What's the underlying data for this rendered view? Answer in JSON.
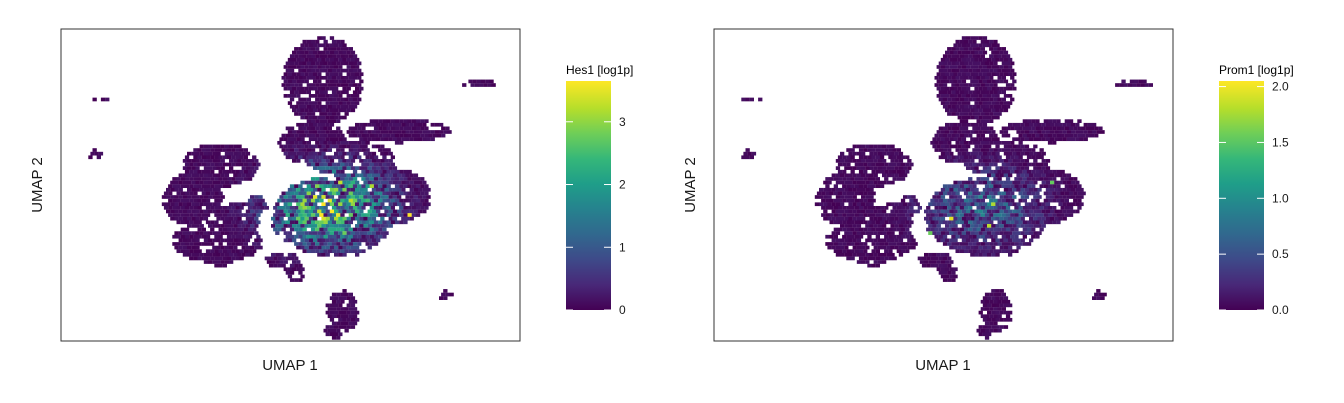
{
  "chart_data": [
    {
      "type": "scatter",
      "subtype": "hexbin-umap-feature-plot",
      "title": "",
      "xlabel": "UMAP 1",
      "ylabel": "UMAP 2",
      "colorbar_title": "Hes1 [log1p]",
      "colorbar_range": [
        0,
        3.65
      ],
      "colorbar_ticks": [
        0,
        1,
        2,
        3
      ],
      "colorbar_tick_labels": [
        "0",
        "1",
        "2",
        "3"
      ],
      "colormap": "viridis",
      "x_ticks_shown": false,
      "y_ticks_shown": false,
      "grid": false,
      "legend_placement": "right",
      "expression_summary": "high expression concentrated in central cluster"
    },
    {
      "type": "scatter",
      "subtype": "hexbin-umap-feature-plot",
      "title": "",
      "xlabel": "UMAP 1",
      "ylabel": "UMAP 2",
      "colorbar_title": "Prom1 [log1p]",
      "colorbar_range": [
        0,
        2.05
      ],
      "colorbar_ticks": [
        0,
        0.5,
        1,
        1.5,
        2
      ],
      "colorbar_tick_labels": [
        "0.0",
        "0.5",
        "1.0",
        "1.5",
        "2.0"
      ],
      "colormap": "viridis",
      "x_ticks_shown": false,
      "y_ticks_shown": false,
      "grid": false,
      "legend_placement": "right",
      "expression_summary": "mostly low, sparse moderate expression in central cluster"
    }
  ],
  "colors": {
    "viridis": [
      "#440154",
      "#482878",
      "#3e4a89",
      "#31688e",
      "#26828e",
      "#1f9e89",
      "#35b779",
      "#6ece58",
      "#b5de2b",
      "#fde725"
    ],
    "frame": "#333333",
    "background": "#ffffff"
  }
}
